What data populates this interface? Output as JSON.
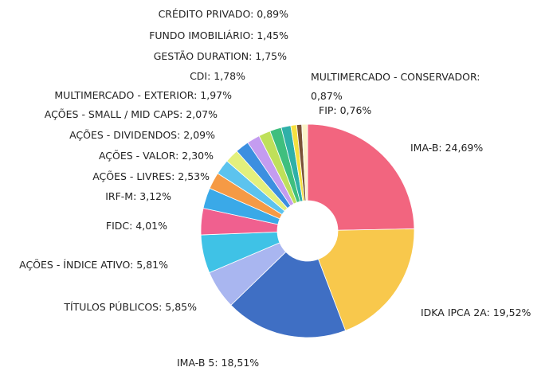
{
  "chart_data": {
    "type": "donut",
    "values": [
      24.69,
      19.52,
      18.51,
      5.85,
      5.81,
      4.01,
      3.12,
      2.53,
      2.3,
      2.09,
      2.07,
      1.97,
      1.78,
      1.75,
      1.45,
      0.89,
      0.76,
      0.87
    ],
    "value_labels": [
      "IMA-B: 24,69%",
      "IDKA IPCA 2A: 19,52%",
      "IMA-B 5: 18,51%",
      "TÍTULOS PÚBLICOS: 5,85%",
      "AÇÕES - ÍNDICE ATIVO: 5,81%",
      "FIDC: 4,01%",
      "IRF-M: 3,12%",
      "AÇÕES - LIVRES: 2,53%",
      "AÇÕES - VALOR: 2,30%",
      "AÇÕES - DIVIDENDOS: 2,09%",
      "AÇÕES - SMALL / MID CAPS: 2,07%",
      "MULTIMERCADO - EXTERIOR: 1,97%",
      "CDI: 1,78%",
      "GESTÃO DURATION: 1,75%",
      "FUNDO IMOBILIÁRIO: 1,45%",
      "CRÉDITO PRIVADO: 0,89%",
      "FIP: 0,76%",
      "MULTIMERCADO - CONSERVADOR: 0,87%"
    ],
    "colors": [
      "#f2657f",
      "#f8c84c",
      "#3f6fc4",
      "#a9b6f0",
      "#3fc2e6",
      "#f0608f",
      "#3aa9e8",
      "#f59a45",
      "#5cc3ee",
      "#e3f07c",
      "#3c8fe0",
      "#c49cf0",
      "#bfe05a",
      "#3fbf7e",
      "#2fb0a8",
      "#f6e040",
      "#7a5236",
      "#fbf3c8"
    ]
  }
}
